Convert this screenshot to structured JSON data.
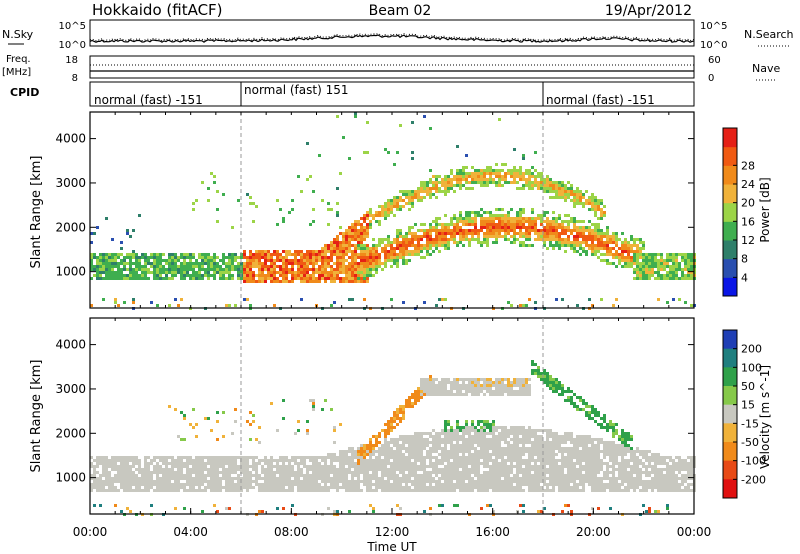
{
  "header": {
    "left_title": "Hokkaido (fitACF)",
    "center_title": "Beam 02",
    "right_title": "19/Apr/2012"
  },
  "top_panels": {
    "nsky_label": "N.Sky",
    "nsky_ticks": [
      "10^5",
      "10^0"
    ],
    "nsearch_label": "N.Search",
    "nsearch_ticks": [
      "10^5",
      "10^0"
    ],
    "freq_label_1": "Freq.",
    "freq_label_2": "[MHz]",
    "freq_ticks": [
      "18",
      "8"
    ],
    "nave_label": "Nave",
    "nave_ticks": [
      "60",
      "0"
    ],
    "cpid_label": "CPID",
    "cpid_segments": [
      {
        "label": "normal (fast) -151",
        "start_hour": 0,
        "end_hour": 6
      },
      {
        "label": "normal (fast) 151",
        "start_hour": 6,
        "end_hour": 18
      },
      {
        "label": "normal (fast) -151",
        "start_hour": 18,
        "end_hour": 24
      }
    ]
  },
  "power_colorbar": {
    "title": "Power [dB]",
    "ticks": [
      "4",
      "8",
      "12",
      "16",
      "20",
      "24",
      "28"
    ],
    "colors": [
      "#0a16e6",
      "#2a4fb0",
      "#2e7f6a",
      "#3fae4f",
      "#9cd447",
      "#f0b23a",
      "#f08a1a",
      "#f05a12",
      "#e52016"
    ]
  },
  "velocity_colorbar": {
    "title": "Velocity [m s^-1]",
    "ticks": [
      "200",
      "100",
      "50",
      "15",
      "-15",
      "-50",
      "-100",
      "-200"
    ],
    "colors": [
      "#1f3fb5",
      "#1f7f7f",
      "#2fa14a",
      "#86c94a",
      "#c8c8c0",
      "#f0b23a",
      "#f08a1a",
      "#e84a16",
      "#e01010"
    ]
  },
  "chart_data": [
    {
      "type": "heatmap",
      "name": "power",
      "ylabel": "Slant Range [km]",
      "xlim": [
        0,
        24
      ],
      "ylim": [
        180,
        4600
      ],
      "yticks": [
        1000,
        2000,
        3000,
        4000
      ],
      "x_tick_labels": [
        "00:00",
        "04:00",
        "08:00",
        "12:00",
        "16:00",
        "20:00",
        "00:00"
      ],
      "x_tick_hours": [
        0,
        4,
        8,
        12,
        16,
        20,
        24
      ],
      "bands": [
        {
          "desc": "near ionospheric scatter",
          "hours": [
            0,
            6
          ],
          "range": [
            850,
            1450
          ],
          "power_db": 12
        },
        {
          "desc": "strong near scatter",
          "hours": [
            6,
            11
          ],
          "range": [
            800,
            1600
          ],
          "power_db": 24
        },
        {
          "desc": "main ground scatter arc",
          "hours": [
            11,
            22
          ],
          "range_min": 1000,
          "range_max": 2100,
          "power_db": 26
        },
        {
          "desc": "upper arc",
          "hours": [
            12,
            20
          ],
          "range_min": 2200,
          "range_max": 3300,
          "power_db": 20
        },
        {
          "desc": "late near scatter",
          "hours": [
            21.5,
            24
          ],
          "range": [
            850,
            1450
          ],
          "power_db": 14
        }
      ]
    },
    {
      "type": "heatmap",
      "name": "velocity",
      "ylabel": "Slant Range [km]",
      "xlabel": "Time UT",
      "xlim": [
        0,
        24
      ],
      "ylim": [
        180,
        4600
      ],
      "yticks": [
        1000,
        2000,
        3000,
        4000
      ],
      "x_tick_labels": [
        "00:00",
        "04:00",
        "08:00",
        "12:00",
        "16:00",
        "20:00",
        "00:00"
      ],
      "x_tick_hours": [
        0,
        4,
        8,
        12,
        16,
        20,
        24
      ],
      "bands": [
        {
          "desc": "ground scatter",
          "hours": [
            0,
            24
          ],
          "range": [
            700,
            2300
          ],
          "velocity": 0
        },
        {
          "desc": "negative velocity arc",
          "hours": [
            10.5,
            13.5
          ],
          "range": [
            1300,
            3300
          ],
          "velocity": -60
        },
        {
          "desc": "upper ground scatter",
          "hours": [
            13,
            17.5
          ],
          "range": [
            2900,
            3300
          ],
          "velocity": 0
        },
        {
          "desc": "positive velocity arc",
          "hours": [
            17.5,
            21.5
          ],
          "range": [
            1800,
            3600
          ],
          "velocity": 40
        }
      ]
    }
  ]
}
